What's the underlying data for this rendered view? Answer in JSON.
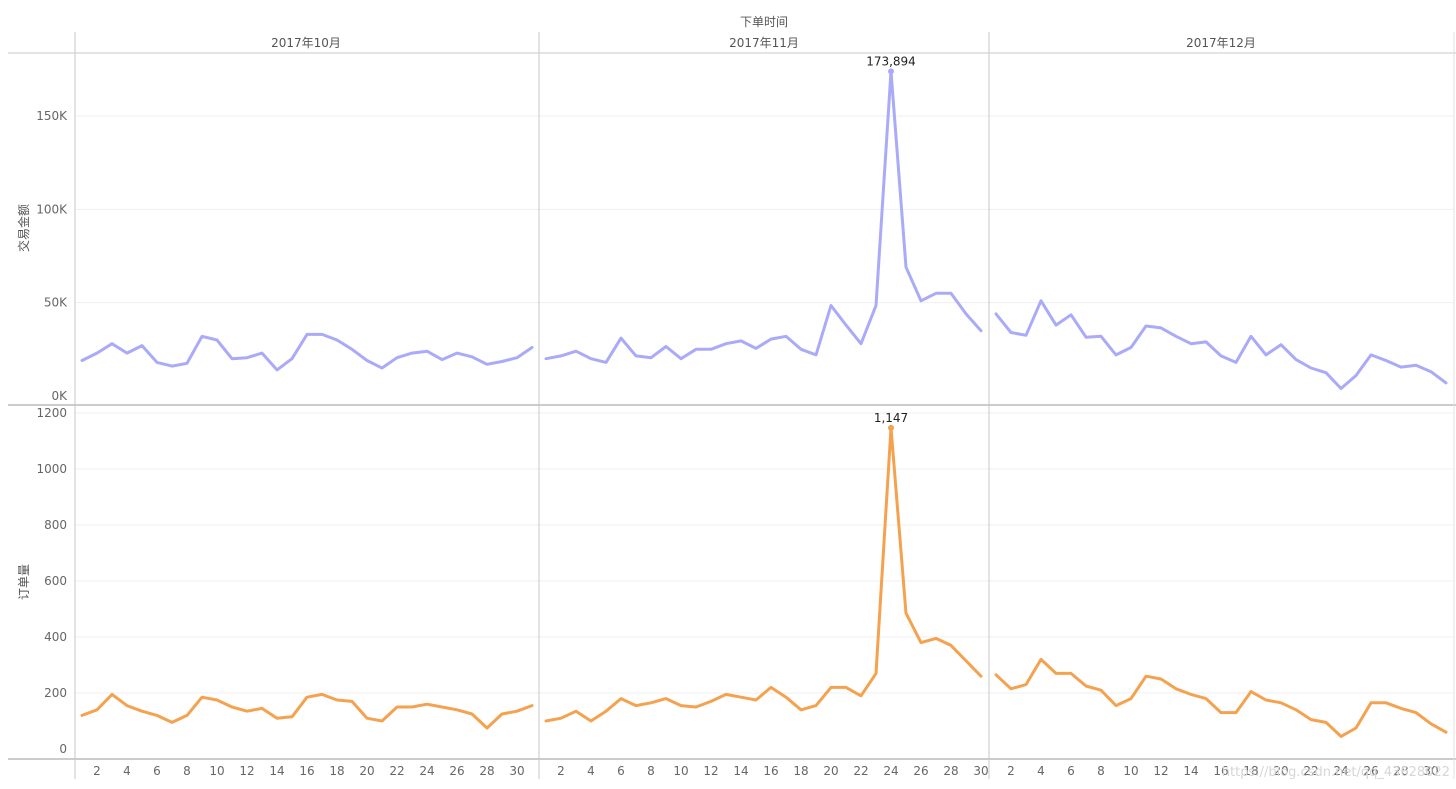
{
  "chart_data": {
    "type": "line",
    "column_header": "下单时间",
    "panels": [
      "2017年10月",
      "2017年11月",
      "2017年12月"
    ],
    "x_ticks": [
      [
        "2",
        "4",
        "6",
        "8",
        "10",
        "12",
        "14",
        "16",
        "18",
        "20",
        "22",
        "24",
        "26",
        "28",
        "30"
      ],
      [
        "2",
        "4",
        "6",
        "8",
        "10",
        "12",
        "14",
        "16",
        "18",
        "20",
        "22",
        "24",
        "26",
        "28",
        "30"
      ],
      [
        "2",
        "4",
        "6",
        "8",
        "10",
        "12",
        "14",
        "16",
        "18",
        "20",
        "22",
        "24",
        "26",
        "28",
        "30"
      ]
    ],
    "grid": true,
    "series": [
      {
        "ylabel": "交易金额",
        "color": "#aaaaf8",
        "ylim": [
          0,
          180000
        ],
        "yticks": [
          0,
          50000,
          100000,
          150000
        ],
        "ytick_labels": [
          "0K",
          "50K",
          "100K",
          "150K"
        ],
        "panels": [
          [
            19000,
            23000,
            28000,
            23000,
            27000,
            18000,
            16000,
            17500,
            32000,
            30000,
            20000,
            20500,
            23000,
            14000,
            20000,
            33000,
            33000,
            30000,
            25000,
            19000,
            15000,
            20500,
            23000,
            24000,
            19500,
            23000,
            21000,
            17000,
            18500,
            20500,
            26000
          ],
          [
            20000,
            21500,
            24000,
            20000,
            18000,
            31000,
            21500,
            20500,
            26500,
            20000,
            25000,
            25000,
            28000,
            29500,
            25500,
            30500,
            32000,
            25000,
            22000,
            48500,
            38000,
            28000,
            48500,
            173894,
            69000,
            51000,
            55000,
            55000,
            44000,
            35000
          ],
          [
            44000,
            34000,
            32500,
            51000,
            38000,
            43500,
            31500,
            32000,
            22000,
            26000,
            37500,
            36500,
            32000,
            28000,
            29000,
            21500,
            18000,
            32000,
            22000,
            27500,
            19500,
            15000,
            12500,
            4000,
            11000,
            22000,
            19000,
            15500,
            16500,
            13000,
            7000
          ]
        ],
        "annotation": {
          "panel": 1,
          "day": 24,
          "label": "173,894"
        }
      },
      {
        "ylabel": "订单量",
        "color": "#f4a24f",
        "ylim": [
          -30,
          1200
        ],
        "yticks": [
          0,
          200,
          400,
          600,
          800,
          1000,
          1200
        ],
        "ytick_labels": [
          "0",
          "200",
          "400",
          "600",
          "800",
          "1000",
          "1200"
        ],
        "panels": [
          [
            120,
            140,
            195,
            155,
            135,
            120,
            95,
            120,
            185,
            175,
            150,
            135,
            145,
            110,
            115,
            185,
            195,
            175,
            170,
            110,
            100,
            150,
            150,
            160,
            150,
            140,
            125,
            75,
            125,
            135,
            155
          ],
          [
            100,
            110,
            135,
            100,
            135,
            180,
            155,
            165,
            180,
            155,
            150,
            170,
            195,
            185,
            175,
            220,
            185,
            140,
            155,
            220,
            220,
            190,
            270,
            1147,
            485,
            380,
            395,
            370,
            315,
            260
          ],
          [
            265,
            215,
            230,
            320,
            270,
            270,
            225,
            210,
            155,
            180,
            260,
            250,
            215,
            195,
            180,
            130,
            130,
            205,
            175,
            165,
            140,
            105,
            95,
            45,
            75,
            165,
            165,
            145,
            130,
            90,
            60
          ]
        ],
        "annotation": {
          "panel": 1,
          "day": 24,
          "label": "1,147"
        }
      }
    ]
  },
  "watermark": "https://blog.csdn.net/qq_43628022"
}
